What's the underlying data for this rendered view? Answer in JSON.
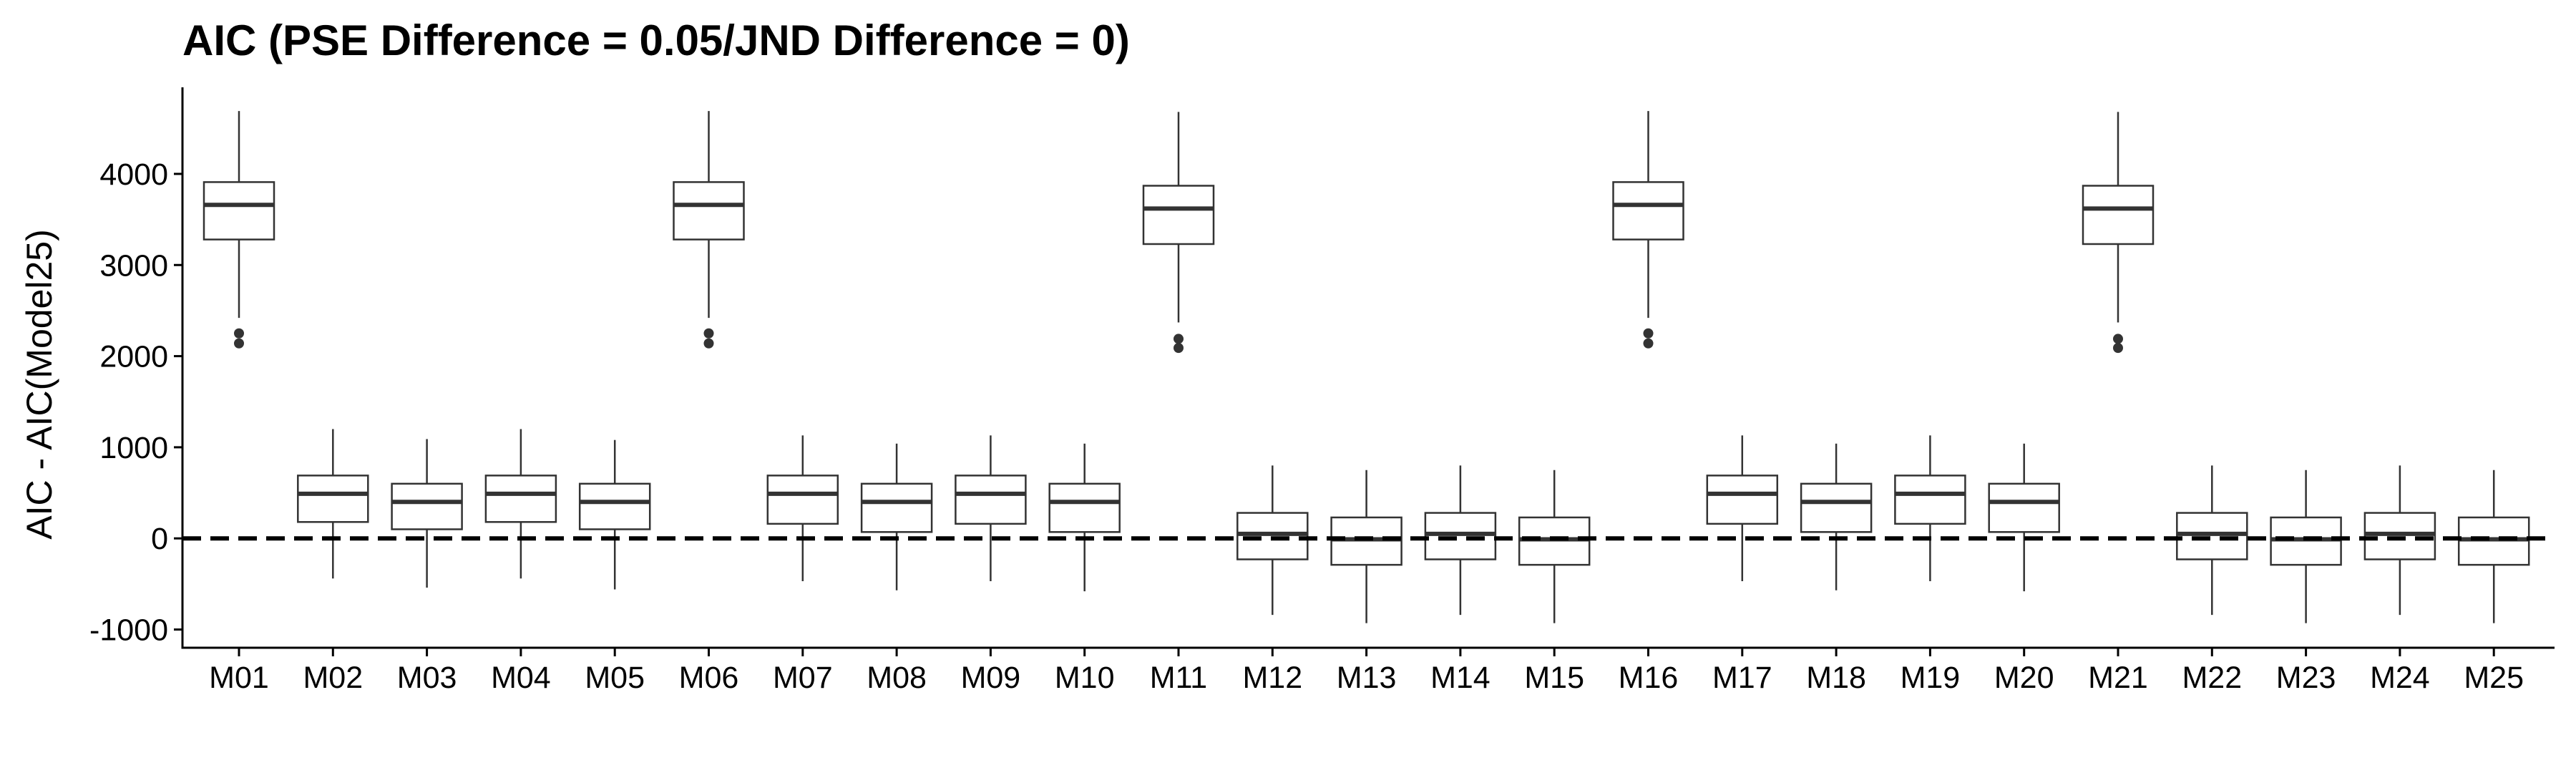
{
  "chart_data": {
    "type": "boxplot",
    "title": "AIC (PSE Difference = 0.05/JND Difference = 0)",
    "xlabel": "",
    "ylabel": "AIC - AIC(Model25)",
    "ylim": [
      -1200,
      4950
    ],
    "yticks": [
      -1000,
      0,
      1000,
      2000,
      3000,
      4000
    ],
    "ytick_labels": [
      "-1000",
      "0",
      "1000",
      "2000",
      "3000",
      "4000"
    ],
    "reference_line": {
      "y": 0,
      "style": "dashed",
      "color": "#000000"
    },
    "grid": false,
    "legend": "none",
    "colors": {
      "box_line": "#333333",
      "box_fill": "#ffffff",
      "axis": "#000000"
    },
    "categories": [
      "M01",
      "M02",
      "M03",
      "M04",
      "M05",
      "M06",
      "M07",
      "M08",
      "M09",
      "M10",
      "M11",
      "M12",
      "M13",
      "M14",
      "M15",
      "M16",
      "M17",
      "M18",
      "M19",
      "M20",
      "M21",
      "M22",
      "M23",
      "M24",
      "M25"
    ],
    "boxes": [
      {
        "min": 2420,
        "q1": 3280,
        "median": 3660,
        "q3": 3910,
        "max": 4690,
        "outliers": [
          2250,
          2140
        ]
      },
      {
        "min": -440,
        "q1": 180,
        "median": 490,
        "q3": 690,
        "max": 1200,
        "outliers": []
      },
      {
        "min": -540,
        "q1": 100,
        "median": 400,
        "q3": 600,
        "max": 1090,
        "outliers": []
      },
      {
        "min": -440,
        "q1": 180,
        "median": 490,
        "q3": 690,
        "max": 1200,
        "outliers": []
      },
      {
        "min": -560,
        "q1": 100,
        "median": 400,
        "q3": 600,
        "max": 1080,
        "outliers": []
      },
      {
        "min": 2420,
        "q1": 3280,
        "median": 3660,
        "q3": 3910,
        "max": 4690,
        "outliers": [
          2250,
          2140
        ]
      },
      {
        "min": -470,
        "q1": 160,
        "median": 490,
        "q3": 690,
        "max": 1130,
        "outliers": []
      },
      {
        "min": -570,
        "q1": 70,
        "median": 400,
        "q3": 600,
        "max": 1040,
        "outliers": []
      },
      {
        "min": -470,
        "q1": 160,
        "median": 490,
        "q3": 690,
        "max": 1130,
        "outliers": []
      },
      {
        "min": -580,
        "q1": 70,
        "median": 400,
        "q3": 600,
        "max": 1040,
        "outliers": []
      },
      {
        "min": 2370,
        "q1": 3230,
        "median": 3620,
        "q3": 3870,
        "max": 4680,
        "outliers": [
          2190,
          2090
        ]
      },
      {
        "min": -840,
        "q1": -230,
        "median": 50,
        "q3": 280,
        "max": 800,
        "outliers": []
      },
      {
        "min": -930,
        "q1": -290,
        "median": -10,
        "q3": 230,
        "max": 750,
        "outliers": []
      },
      {
        "min": -840,
        "q1": -230,
        "median": 50,
        "q3": 280,
        "max": 800,
        "outliers": []
      },
      {
        "min": -930,
        "q1": -290,
        "median": -10,
        "q3": 230,
        "max": 750,
        "outliers": []
      },
      {
        "min": 2420,
        "q1": 3280,
        "median": 3660,
        "q3": 3910,
        "max": 4690,
        "outliers": [
          2250,
          2140
        ]
      },
      {
        "min": -470,
        "q1": 160,
        "median": 490,
        "q3": 690,
        "max": 1130,
        "outliers": []
      },
      {
        "min": -570,
        "q1": 70,
        "median": 400,
        "q3": 600,
        "max": 1040,
        "outliers": []
      },
      {
        "min": -470,
        "q1": 160,
        "median": 490,
        "q3": 690,
        "max": 1130,
        "outliers": []
      },
      {
        "min": -580,
        "q1": 70,
        "median": 400,
        "q3": 600,
        "max": 1040,
        "outliers": []
      },
      {
        "min": 2370,
        "q1": 3230,
        "median": 3620,
        "q3": 3870,
        "max": 4680,
        "outliers": [
          2190,
          2090
        ]
      },
      {
        "min": -840,
        "q1": -230,
        "median": 50,
        "q3": 280,
        "max": 800,
        "outliers": []
      },
      {
        "min": -930,
        "q1": -290,
        "median": -10,
        "q3": 230,
        "max": 750,
        "outliers": []
      },
      {
        "min": -840,
        "q1": -230,
        "median": 50,
        "q3": 280,
        "max": 800,
        "outliers": []
      },
      {
        "min": -930,
        "q1": -290,
        "median": -10,
        "q3": 230,
        "max": 750,
        "outliers": []
      }
    ]
  }
}
